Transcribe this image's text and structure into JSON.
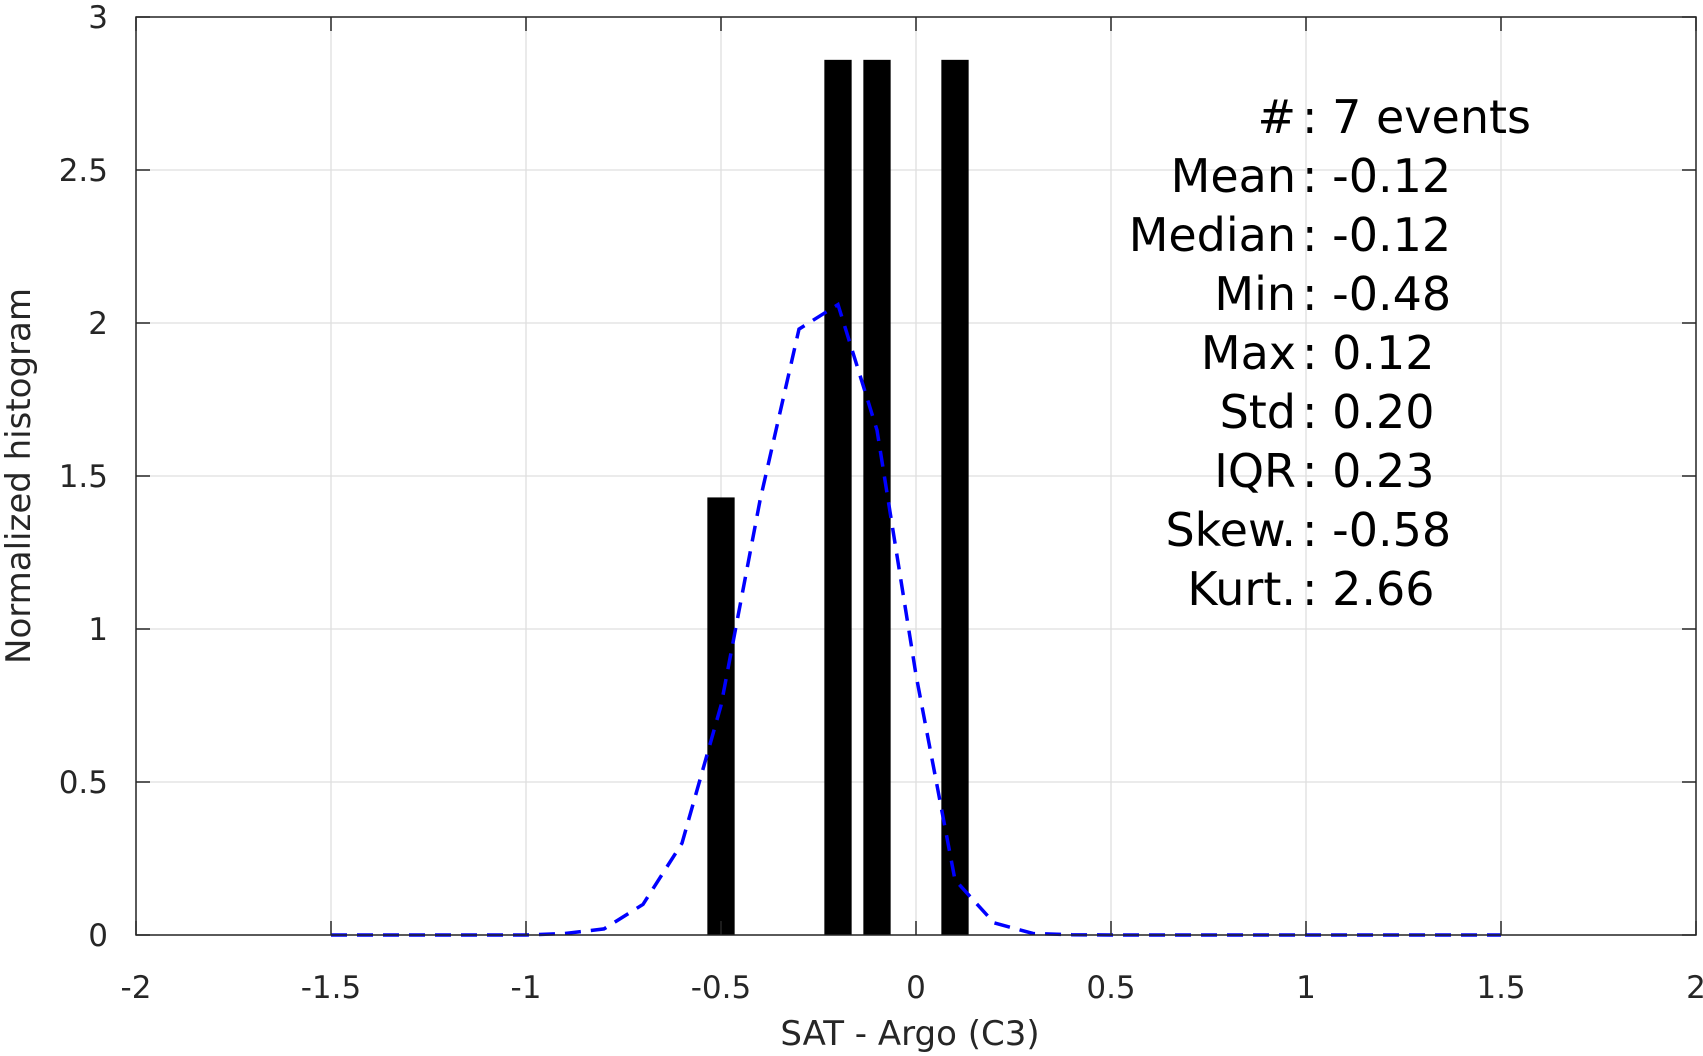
{
  "chart_data": {
    "type": "bar",
    "xlabel": "SAT - Argo (C3)",
    "ylabel": "Normalized histogram",
    "xlim": [
      -2,
      2
    ],
    "ylim": [
      0,
      3
    ],
    "x_ticks": [
      "-2",
      "-1.5",
      "-1",
      "-0.5",
      "0",
      "0.5",
      "1",
      "1.5",
      "2"
    ],
    "y_ticks": [
      "0",
      "0.5",
      "1",
      "1.5",
      "2",
      "2.5",
      "3"
    ],
    "grid": true,
    "bars": {
      "color": "#000000",
      "width": 0.07,
      "x": [
        -0.5,
        -0.2,
        -0.1,
        0.1
      ],
      "values": [
        1.43,
        2.86,
        2.86,
        2.86
      ]
    },
    "fit_curve": {
      "style": "dashed",
      "color": "#0000ff",
      "x": [
        -1.5,
        -1.4,
        -1.3,
        -1.2,
        -1.1,
        -1.0,
        -0.9,
        -0.8,
        -0.7,
        -0.6,
        -0.5,
        -0.4,
        -0.3,
        -0.2,
        -0.1,
        0.0,
        0.1,
        0.2,
        0.3,
        0.4,
        0.5,
        0.6,
        0.7,
        0.8,
        0.9,
        1.0,
        1.1,
        1.2,
        1.3,
        1.4,
        1.5
      ],
      "y": [
        0,
        0,
        0,
        0,
        0,
        0,
        0.005,
        0.02,
        0.1,
        0.3,
        0.75,
        1.42,
        1.98,
        2.06,
        1.65,
        0.85,
        0.18,
        0.04,
        0.005,
        0.001,
        0,
        0,
        0,
        0,
        0,
        0,
        0,
        0,
        0,
        0,
        0
      ]
    },
    "stats": [
      {
        "label": "#  ",
        "value": ": 7 events"
      },
      {
        "label": "Mean",
        "value": ": -0.12"
      },
      {
        "label": "Median",
        "value": ": -0.12"
      },
      {
        "label": "Min",
        "value": ": -0.48"
      },
      {
        "label": "Max",
        "value": ": 0.12"
      },
      {
        "label": "Std",
        "value": ": 0.20"
      },
      {
        "label": "IQR",
        "value": ": 0.23"
      },
      {
        "label": "Skew.",
        "value": ": -0.58"
      },
      {
        "label": "Kurt.",
        "value": ": 2.66"
      }
    ]
  }
}
